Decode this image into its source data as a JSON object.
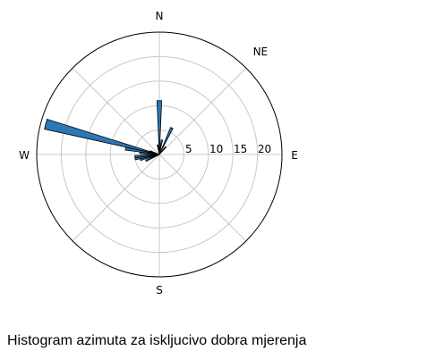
{
  "caption": "Histogram azimuta za iskljucivo dobra mjerenja",
  "chart_data": {
    "type": "polar-histogram",
    "title": "",
    "directions": [
      {
        "label": "N",
        "azimuth": 0
      },
      {
        "label": "NE",
        "azimuth": 45
      },
      {
        "label": "E",
        "azimuth": 90
      },
      {
        "label": "S",
        "azimuth": 180
      },
      {
        "label": "W",
        "azimuth": 270
      }
    ],
    "radial_ticks": [
      5,
      10,
      15,
      20
    ],
    "radial_tick_labels": [
      "5",
      "10",
      "15",
      "20"
    ],
    "rmax": 25,
    "grid": true,
    "bin_width_deg": 5,
    "bins": [
      {
        "azimuth": 0,
        "count": 11
      },
      {
        "azimuth": 10,
        "count": 3
      },
      {
        "azimuth": 25,
        "count": 6
      },
      {
        "azimuth": 40,
        "count": 2
      },
      {
        "azimuth": 245,
        "count": 3
      },
      {
        "azimuth": 255,
        "count": 4
      },
      {
        "azimuth": 260,
        "count": 5
      },
      {
        "azimuth": 265,
        "count": 5
      },
      {
        "azimuth": 275,
        "count": 4
      },
      {
        "azimuth": 280,
        "count": 7
      },
      {
        "azimuth": 285,
        "count": 24
      },
      {
        "azimuth": 290,
        "count": 2
      },
      {
        "azimuth": 350,
        "count": 2
      }
    ],
    "bar_color": "#2b78b8",
    "bar_edge_color": "#000000",
    "grid_color": "#c8c8c8",
    "outer_ring_color": "#000000"
  }
}
